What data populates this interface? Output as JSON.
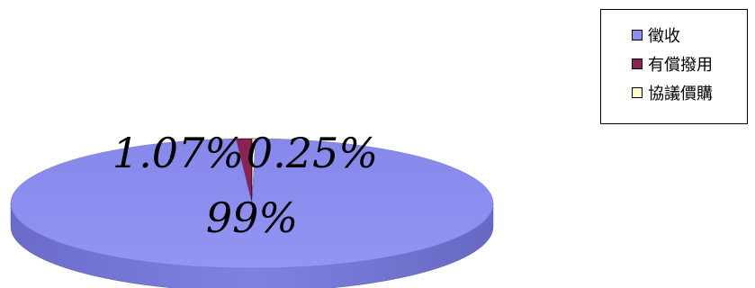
{
  "chart_data": {
    "type": "pie",
    "style": "3d",
    "categories": [
      "徵收",
      "有償撥用",
      "協議價購"
    ],
    "values": [
      98.68,
      1.07,
      0.25
    ],
    "data_labels": [
      "99%",
      "1.07%",
      "0.25%"
    ],
    "colors": [
      "#8d8ff0",
      "#8b2252",
      "#fffcc8"
    ],
    "legend_position": "top-right"
  }
}
